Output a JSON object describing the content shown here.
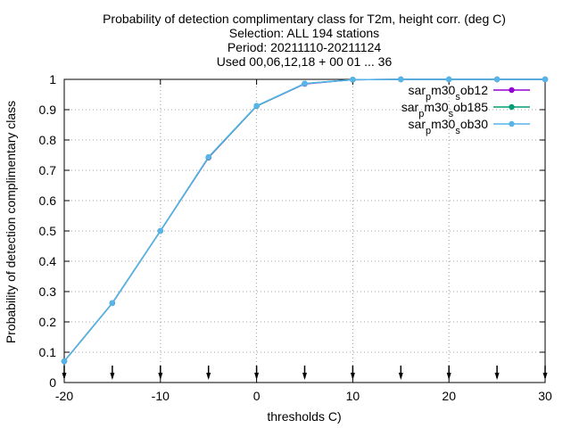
{
  "chart_data": {
    "type": "line",
    "title_lines": [
      "Probability of detection complimentary class  for T2m, height corr. (deg C)",
      "Selection: ALL    194 stations",
      "Period: 20211110-20211124",
      "Used 00,06,12,18 + 00 01 ... 36"
    ],
    "xlabel": "thresholds C)",
    "ylabel": "Probability of detection complimentary class",
    "xlim": [
      -20,
      30
    ],
    "ylim": [
      0,
      1
    ],
    "x_ticks": [
      -20,
      -10,
      0,
      10,
      20,
      30
    ],
    "y_ticks": [
      0,
      0.1,
      0.2,
      0.3,
      0.4,
      0.5,
      0.6,
      0.7,
      0.8,
      0.9,
      1
    ],
    "x_tick_labels": [
      "-20",
      "-10",
      "0",
      "10",
      "20",
      "30"
    ],
    "y_tick_labels": [
      "0",
      "0.1",
      "0.2",
      "0.3",
      "0.4",
      "0.5",
      "0.6",
      "0.7",
      "0.8",
      "0.9",
      "1"
    ],
    "grid": true,
    "legend_position": "top-right",
    "x": [
      -20,
      -15,
      -10,
      -5,
      0,
      5,
      10,
      15,
      20,
      25,
      30
    ],
    "event_markers_x": [
      -20,
      -15,
      -10,
      -5,
      0,
      5,
      10,
      15,
      20,
      25,
      30
    ],
    "series": [
      {
        "name_base": "sar",
        "name_sub1": "p",
        "name_mid": "m30",
        "name_sub2": "s",
        "name_end": "ob12",
        "color": "#9400d3",
        "values": [
          0.07,
          0.262,
          0.5,
          0.742,
          0.912,
          0.985,
          0.999,
          1.0,
          1.0,
          1.0,
          1.0
        ]
      },
      {
        "name_base": "sar",
        "name_sub1": "p",
        "name_mid": "m30",
        "name_sub2": "s",
        "name_end": "ob185",
        "color": "#009e73",
        "values": [
          0.07,
          0.262,
          0.5,
          0.743,
          0.912,
          0.986,
          0.999,
          1.0,
          1.0,
          1.0,
          1.0
        ]
      },
      {
        "name_base": "sar",
        "name_sub1": "p",
        "name_mid": "m30",
        "name_sub2": "s",
        "name_end": "ob30",
        "color": "#56b4e9",
        "values": [
          0.07,
          0.262,
          0.5,
          0.744,
          0.913,
          0.986,
          0.999,
          1.0,
          1.0,
          1.0,
          1.0
        ]
      }
    ]
  }
}
